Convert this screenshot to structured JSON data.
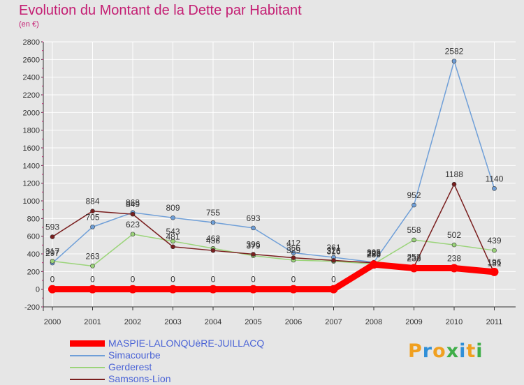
{
  "header": {
    "title": "Evolution du Montant de la Dette par Habitant",
    "unit": "(en €)"
  },
  "logo": {
    "letters": [
      "P",
      "r",
      "o",
      "x",
      "i",
      "t",
      "i"
    ],
    "colors": [
      "#f0a020",
      "#2f8fd8",
      "#f0a020",
      "#3fae49",
      "#2f8fd8",
      "#f0a020",
      "#3fae49"
    ]
  },
  "chart_data": {
    "type": "line",
    "x": [
      "2000",
      "2001",
      "2002",
      "2003",
      "2004",
      "2005",
      "2006",
      "2007",
      "2008",
      "2009",
      "2010",
      "2011"
    ],
    "ylim": [
      -200,
      2800
    ],
    "yticks": [
      -200,
      0,
      200,
      400,
      600,
      800,
      1000,
      1200,
      1400,
      1600,
      1800,
      2000,
      2200,
      2400,
      2600,
      2800
    ],
    "grid": true,
    "legend_position": "bottom-left",
    "series": [
      {
        "name": "MASPIE-LALONQUèRE-JUILLACQ",
        "values": [
          0,
          0,
          0,
          0,
          0,
          0,
          0,
          0,
          280,
          238,
          238,
          196
        ],
        "labels": [
          "0",
          "0",
          "0",
          "0",
          "0",
          "0",
          "0",
          "0",
          "280",
          "238",
          "238",
          "196"
        ],
        "color": "#ff0000",
        "width": 9
      },
      {
        "name": "Simacourbe",
        "values": [
          297,
          705,
          868,
          809,
          755,
          693,
          412,
          361,
          305,
          952,
          2582,
          1140
        ],
        "labels": [
          "297",
          "705",
          "868",
          "809",
          "755",
          "693",
          "412",
          "361",
          "305",
          "952",
          "2582",
          "1140"
        ],
        "color": "#6f9fd8",
        "width": 1.5
      },
      {
        "name": "Gerderest",
        "values": [
          317,
          263,
          623,
          543,
          462,
          379,
          329,
          316,
          286,
          558,
          502,
          439
        ],
        "labels": [
          "317",
          "263",
          "623",
          "543",
          "462",
          "379",
          "329",
          "316",
          "286",
          "558",
          "502",
          "439"
        ],
        "color": "#9bd47a",
        "width": 1.5
      },
      {
        "name": "Samsons-Lion",
        "values": [
          593,
          884,
          849,
          481,
          438,
          396,
          356,
          326,
          298,
          253,
          1188,
          181
        ],
        "labels": [
          "593",
          "884",
          "849",
          "481",
          "438",
          "396",
          "356",
          "326",
          "298",
          "253",
          "1188",
          "181"
        ],
        "color": "#7a1f1f",
        "width": 1.5
      }
    ]
  }
}
